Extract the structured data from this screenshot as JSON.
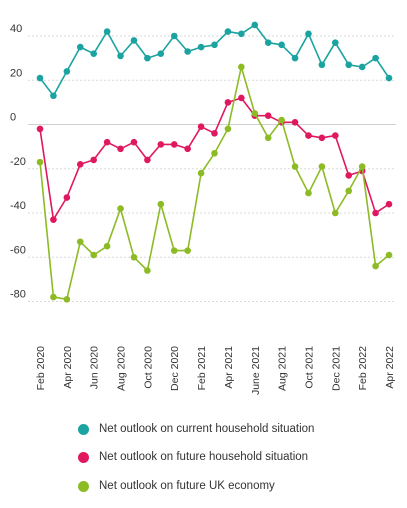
{
  "chart_data": {
    "type": "line",
    "categories": [
      "Feb 2020",
      "Mar 2020",
      "Apr 2020",
      "May 2020",
      "Jun 2020",
      "Jul 2020",
      "Aug 2020",
      "Sep 2020",
      "Oct 2020",
      "Nov 2020",
      "Dec 2020",
      "Jan 2021",
      "Feb 2021",
      "Mar 2021",
      "Apr 2021",
      "May 2021",
      "June 2021",
      "Jul 2021",
      "Aug 2021",
      "Sep 2021",
      "Oct 2021",
      "Nov 2021",
      "Dec 2021",
      "Jan 2022",
      "Feb 2022",
      "Mar 2022",
      "Apr 2022"
    ],
    "tick_labels": [
      "Feb 2020",
      "Apr 2020",
      "Jun 2020",
      "Aug 2020",
      "Oct 2020",
      "Dec 2020",
      "Feb 2021",
      "Apr 2021",
      "June 2021",
      "Aug 2021",
      "Oct 2021",
      "Dec 2021",
      "Feb 2022",
      "Apr 2022"
    ],
    "yticks": [
      40,
      20,
      0,
      -20,
      -40,
      -60,
      -80
    ],
    "ylim": [
      -86,
      50
    ],
    "grid": true,
    "legend_position": "bottom",
    "series": [
      {
        "name": "Net outlook on current household situation",
        "color": "#1aa3a0",
        "values": [
          21,
          13,
          24,
          35,
          32,
          42,
          31,
          38,
          30,
          32,
          40,
          33,
          35,
          36,
          42,
          41,
          45,
          37,
          36,
          30,
          41,
          27,
          37,
          27,
          26,
          30,
          21
        ]
      },
      {
        "name": "Net outlook on future household situation",
        "color": "#e0185f",
        "values": [
          -2,
          -43,
          -33,
          -18,
          -16,
          -8,
          -11,
          -8,
          -16,
          -9,
          -9,
          -11,
          -1,
          -4,
          10,
          12,
          4,
          4,
          1,
          1,
          -5,
          -6,
          -5,
          -23,
          -21,
          -40,
          -36
        ]
      },
      {
        "name": "Net outlook on future UK economy",
        "color": "#8dbb25",
        "values": [
          -17,
          -78,
          -79,
          -53,
          -59,
          -55,
          -38,
          -60,
          -66,
          -36,
          -57,
          -57,
          -22,
          -13,
          -2,
          26,
          5,
          -6,
          2,
          -19,
          -31,
          -19,
          -40,
          -30,
          -19,
          -64,
          -59
        ]
      }
    ]
  }
}
